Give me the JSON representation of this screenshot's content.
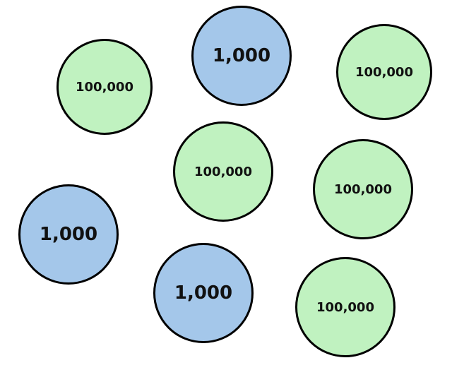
{
  "colors": {
    "green": "#c0f2c0",
    "blue": "#a4c7ea",
    "outline": "#000000"
  },
  "coins": [
    {
      "label": "100,000",
      "color": "green"
    },
    {
      "label": "1,000",
      "color": "blue"
    },
    {
      "label": "100,000",
      "color": "green"
    },
    {
      "label": "100,000",
      "color": "green"
    },
    {
      "label": "100,000",
      "color": "green"
    },
    {
      "label": "1,000",
      "color": "blue"
    },
    {
      "label": "1,000",
      "color": "blue"
    },
    {
      "label": "100,000",
      "color": "green"
    }
  ]
}
